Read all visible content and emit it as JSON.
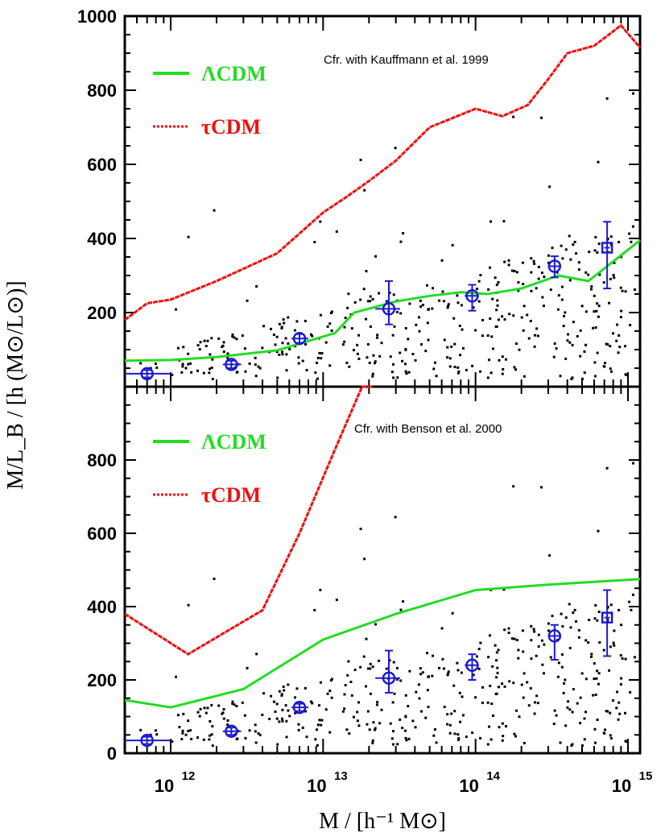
{
  "colors": {
    "lcdm": "#22dd22",
    "tcdm": "#ee1111",
    "obs": "#1a1ad0",
    "points": "#000000",
    "axes": "#000000"
  },
  "axes": {
    "xlabel": "M / [h⁻¹ M⊙]",
    "ylabel": "M/L_B / [h (M⊙/L⊙)]",
    "x_scale": "log",
    "xlim": [
      500000000000.0,
      1200000000000000.0
    ],
    "ylim": [
      0,
      1000
    ],
    "x_tick_labels": [
      {
        "base": "10",
        "exp": "12",
        "value": 1000000000000.0
      },
      {
        "base": "10",
        "exp": "13",
        "value": 10000000000000.0
      },
      {
        "base": "10",
        "exp": "14",
        "value": 100000000000000.0
      },
      {
        "base": "10",
        "exp": "15",
        "value": 1000000000000000.0
      }
    ],
    "top_y_tick_labels": [
      "1000",
      "800",
      "600",
      "400",
      "200"
    ],
    "bottom_y_tick_labels": [
      "800",
      "600",
      "400",
      "200",
      "0"
    ],
    "y_tick_values_top": [
      1000,
      800,
      600,
      400,
      200
    ],
    "y_tick_values_bottom": [
      800,
      600,
      400,
      200,
      0
    ]
  },
  "chart_data": [
    {
      "type": "line",
      "panel": "top",
      "annotation": "Cfr. with Kauffmann et al. 1999",
      "legend": [
        {
          "label": "ΛCDM",
          "style": "solid",
          "color": "#22dd22"
        },
        {
          "label": "τCDM",
          "style": "dotted",
          "color": "#ee1111"
        }
      ],
      "series": [
        {
          "name": "ΛCDM",
          "x": [
            500000000000.0,
            1000000000000.0,
            2000000000000.0,
            5000000000000.0,
            12000000000000.0,
            16000000000000.0,
            30000000000000.0,
            50000000000000.0,
            80000000000000.0,
            120000000000000.0,
            200000000000000.0,
            350000000000000.0,
            550000000000000.0,
            1200000000000000.0
          ],
          "y": [
            70,
            72,
            80,
            98,
            145,
            200,
            230,
            245,
            255,
            250,
            265,
            300,
            285,
            395
          ]
        },
        {
          "name": "τCDM",
          "x": [
            500000000000.0,
            700000000000.0,
            1000000000000.0,
            2000000000000.0,
            5000000000000.0,
            10000000000000.0,
            14000000000000.0,
            20000000000000.0,
            30000000000000.0,
            50000000000000.0,
            100000000000000.0,
            150000000000000.0,
            220000000000000.0,
            300000000000000.0,
            400000000000000.0,
            600000000000000.0,
            900000000000000.0,
            1200000000000000.0
          ],
          "y": [
            180,
            225,
            235,
            285,
            360,
            470,
            510,
            555,
            610,
            700,
            750,
            730,
            760,
            830,
            900,
            920,
            975,
            915
          ]
        }
      ],
      "observed": [
        {
          "x": 700000000000.0,
          "y": 35,
          "xerr": [
            500000000000.0,
            1000000000000.0
          ],
          "yerr": [
            25,
            45
          ]
        },
        {
          "x": 2500000000000.0,
          "y": 60,
          "xerr": [
            2200000000000.0,
            2900000000000.0
          ],
          "yerr": [
            50,
            70
          ]
        },
        {
          "x": 7000000000000.0,
          "y": 130,
          "xerr": [
            6200000000000.0,
            8000000000000.0
          ],
          "yerr": [
            118,
            142
          ]
        },
        {
          "x": 27000000000000.0,
          "y": 210,
          "xerr": [
            22000000000000.0,
            32000000000000.0
          ],
          "yerr": [
            168,
            285
          ]
        },
        {
          "x": 95000000000000.0,
          "y": 245,
          "xerr": [
            85000000000000.0,
            105000000000000.0
          ],
          "yerr": [
            205,
            275
          ]
        },
        {
          "x": 330000000000000.0,
          "y": 325,
          "xerr": [
            300000000000000.0,
            360000000000000.0
          ],
          "yerr": [
            295,
            352
          ]
        },
        {
          "x": 730000000000000.0,
          "y": 375,
          "xerr": [
            700000000000000.0,
            760000000000000.0
          ],
          "yerr": [
            265,
            445
          ]
        }
      ]
    },
    {
      "type": "line",
      "panel": "bottom",
      "annotation": "Cfr. with Benson et al. 2000",
      "legend": [
        {
          "label": "ΛCDM",
          "style": "solid",
          "color": "#22dd22"
        },
        {
          "label": "τCDM",
          "style": "dotted",
          "color": "#ee1111"
        }
      ],
      "series": [
        {
          "name": "ΛCDM",
          "x": [
            500000000000.0,
            1000000000000.0,
            3000000000000.0,
            10000000000000.0,
            30000000000000.0,
            100000000000000.0,
            300000000000000.0,
            1200000000000000.0
          ],
          "y": [
            145,
            125,
            175,
            310,
            380,
            445,
            460,
            475
          ]
        },
        {
          "name": "τCDM",
          "x": [
            500000000000.0,
            1300000000000.0,
            4000000000000.0,
            7000000000000.0,
            12000000000000.0,
            18000000000000.0,
            21000000000000.0
          ],
          "y": [
            380,
            270,
            390,
            600,
            830,
            1000,
            1040
          ]
        }
      ],
      "observed": [
        {
          "x": 700000000000.0,
          "y": 35,
          "xerr": [
            500000000000.0,
            1000000000000.0
          ],
          "yerr": [
            25,
            45
          ]
        },
        {
          "x": 2500000000000.0,
          "y": 60,
          "xerr": [
            2200000000000.0,
            2900000000000.0
          ],
          "yerr": [
            50,
            70
          ]
        },
        {
          "x": 7000000000000.0,
          "y": 125,
          "xerr": [
            6200000000000.0,
            8000000000000.0
          ],
          "yerr": [
            115,
            135
          ]
        },
        {
          "x": 27000000000000.0,
          "y": 205,
          "xerr": [
            22000000000000.0,
            32000000000000.0
          ],
          "yerr": [
            165,
            280
          ]
        },
        {
          "x": 95000000000000.0,
          "y": 240,
          "xerr": [
            85000000000000.0,
            105000000000000.0
          ],
          "yerr": [
            200,
            270
          ]
        },
        {
          "x": 330000000000000.0,
          "y": 320,
          "xerr": [
            300000000000000.0,
            360000000000000.0
          ],
          "yerr": [
            255,
            350
          ]
        },
        {
          "x": 730000000000000.0,
          "y": 370,
          "xerr": [
            700000000000000.0,
            760000000000000.0
          ],
          "yerr": [
            265,
            445
          ]
        }
      ]
    }
  ]
}
